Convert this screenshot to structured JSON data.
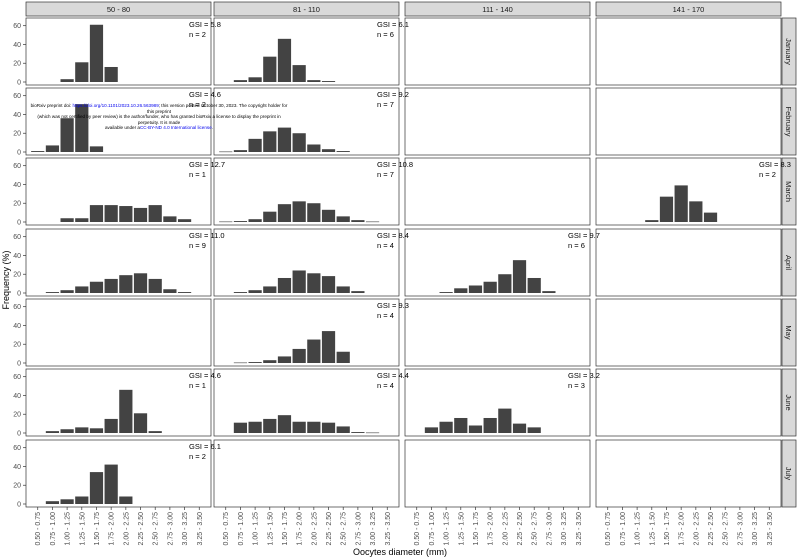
{
  "chart_data": {
    "type": "bar",
    "xlabel": "Oocytes diameter (mm)",
    "ylabel": "Frequency (%)",
    "ylim": [
      0,
      65
    ],
    "yticks": [
      0,
      20,
      40,
      60
    ],
    "categories": [
      "0.50 - 0.75",
      "0.75 - 1.00",
      "1.00 - 1.25",
      "1.25 - 1.50",
      "1.50 - 1.75",
      "1.75 - 2.00",
      "2.00 - 2.25",
      "2.25 - 2.50",
      "2.50 - 2.75",
      "2.75 - 3.00",
      "3.00 - 3.25",
      "3.25 - 3.50"
    ],
    "columns": [
      "50 - 80",
      "81 - 110",
      "111 - 140",
      "141 - 170"
    ],
    "rows": [
      "January",
      "February",
      "March",
      "April",
      "May",
      "June",
      "July"
    ],
    "bar_color": "#434343",
    "strip_color": "#d9d9d9",
    "panels": [
      {
        "row": 0,
        "col": 0,
        "gsi": "GSI = 5.8",
        "n": "n = 2",
        "values": [
          0,
          0,
          3,
          21,
          61,
          16,
          0,
          0,
          0,
          0,
          0,
          0
        ]
      },
      {
        "row": 0,
        "col": 1,
        "gsi": "GSI = 6.1",
        "n": "n = 6",
        "values": [
          0,
          2,
          5,
          27,
          46,
          18,
          2,
          1,
          0,
          0,
          0,
          0
        ]
      },
      {
        "row": 1,
        "col": 0,
        "gsi": "GSI = 4.6",
        "n": "n = 2",
        "values": [
          1,
          7,
          36,
          51,
          6,
          0,
          0,
          0,
          0,
          0,
          0,
          0
        ]
      },
      {
        "row": 1,
        "col": 1,
        "gsi": "GSI = 9.2",
        "n": "n = 7",
        "values": [
          0.5,
          2,
          14,
          22,
          26,
          20,
          8,
          3,
          1,
          0,
          0,
          0
        ]
      },
      {
        "row": 2,
        "col": 0,
        "gsi": "GSI = 12.7",
        "n": "n = 1",
        "values": [
          0,
          0,
          4,
          4,
          18,
          18,
          17,
          15,
          18,
          6,
          3,
          0
        ]
      },
      {
        "row": 2,
        "col": 1,
        "gsi": "GSI = 10.8",
        "n": "n = 7",
        "values": [
          0.5,
          1,
          3,
          11,
          19,
          22,
          20,
          13,
          6,
          2,
          0.5,
          0
        ]
      },
      {
        "row": 2,
        "col": 3,
        "gsi": "GSI = 8.3",
        "n": "n = 2",
        "values": [
          0,
          0,
          0,
          2,
          27,
          39,
          22,
          10,
          0,
          0,
          0,
          0
        ]
      },
      {
        "row": 3,
        "col": 0,
        "gsi": "GSI = 11.0",
        "n": "n = 9",
        "values": [
          0,
          1,
          3,
          7,
          12,
          15,
          19,
          21,
          15,
          4,
          1,
          0
        ]
      },
      {
        "row": 3,
        "col": 1,
        "gsi": "GSI = 8.4",
        "n": "n = 4",
        "values": [
          0,
          1,
          3,
          7,
          16,
          24,
          21,
          18,
          7,
          2,
          0,
          0
        ]
      },
      {
        "row": 3,
        "col": 2,
        "gsi": "GSI = 9.7",
        "n": "n = 6",
        "values": [
          0,
          0,
          1,
          5,
          8,
          12,
          20,
          35,
          16,
          2,
          0,
          0
        ]
      },
      {
        "row": 4,
        "col": 1,
        "gsi": "GSI = 9.3",
        "n": "n = 4",
        "values": [
          0,
          0.5,
          1,
          3,
          7,
          15,
          25,
          34,
          12,
          0,
          0,
          0
        ]
      },
      {
        "row": 5,
        "col": 0,
        "gsi": "GSI = 4.6",
        "n": "n = 1",
        "values": [
          0,
          2,
          4,
          6,
          5,
          15,
          46,
          21,
          2,
          0,
          0,
          0
        ]
      },
      {
        "row": 5,
        "col": 1,
        "gsi": "GSI = 4.4",
        "n": "n = 4",
        "values": [
          0,
          11,
          12,
          15,
          19,
          12,
          12,
          11,
          7,
          1,
          0.5,
          0
        ]
      },
      {
        "row": 5,
        "col": 2,
        "gsi": "GSI = 3.2",
        "n": "n = 3",
        "values": [
          0,
          6,
          12,
          16,
          8,
          16,
          26,
          10,
          6,
          0,
          0,
          0
        ]
      },
      {
        "row": 6,
        "col": 0,
        "gsi": "GSI = 6.1",
        "n": "n = 2",
        "values": [
          0,
          3,
          5,
          8,
          34,
          42,
          8,
          0,
          0,
          0,
          0,
          0
        ]
      }
    ]
  },
  "preprint": {
    "line1_prefix": "bioRxiv preprint doi: ",
    "doi": "https://doi.org/10.1101/2023.10.26.563989",
    "line1_suffix": "; this version posted October 30, 2023. The copyright holder for this preprint",
    "line2": "(which was not certified by peer review) is the author/funder, who has granted bioRxiv a license to display the preprint in perpetuity. It is made",
    "line3_prefix": "available under a",
    "license": "CC-BY-ND 4.0 International license",
    "line3_suffix": "."
  }
}
